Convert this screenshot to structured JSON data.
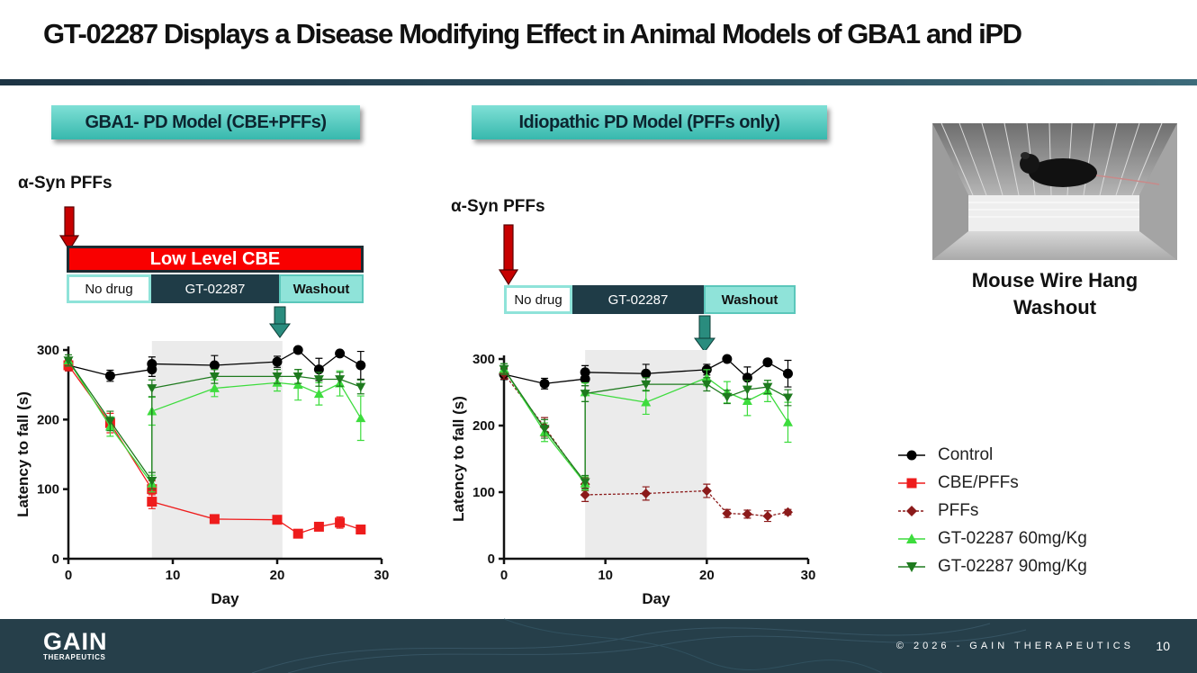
{
  "header": {
    "title": "GT-02287 Displays a Disease Modifying Effect in Animal Models of GBA1 and iPD"
  },
  "panels": {
    "left": {
      "model_label": "GBA1- PD Model (CBE+PFFs)",
      "syn_label": "α-Syn PFFs",
      "cbe_label": "Low Level CBE",
      "timeline": {
        "no_drug": "No drug",
        "drug": "GT-02287",
        "washout": "Washout"
      }
    },
    "right": {
      "model_label": "Idiopathic PD Model (PFFs only)",
      "syn_label": "α-Syn PFFs",
      "timeline": {
        "no_drug": "No drug",
        "drug": "GT-02287",
        "washout": "Washout"
      }
    }
  },
  "photo": {
    "caption_line1": "Mouse Wire Hang",
    "caption_line2": "Washout"
  },
  "legend": {
    "items": [
      {
        "label": "Control",
        "color": "#000000",
        "marker": "circle"
      },
      {
        "label": "CBE/PFFs",
        "color": "#ee1c1c",
        "marker": "square"
      },
      {
        "label": "PFFs",
        "color": "#8b1a1a",
        "marker": "diamond"
      },
      {
        "label": "GT-02287 60mg/Kg",
        "color": "#3ddc3d",
        "marker": "triangle-up"
      },
      {
        "label": "GT-02287 90mg/Kg",
        "color": "#1e7a1e",
        "marker": "triangle-down"
      }
    ]
  },
  "footer": {
    "logo_main": "GAIN",
    "logo_sub": "THERAPEUTICS",
    "copyright": "© 2026 - GAIN THERAPEUTICS",
    "page_number": "10"
  },
  "chart_data": [
    {
      "type": "line",
      "title": "GBA1- PD Model (CBE+PFFs)",
      "xlabel": "Day",
      "ylabel": "Latency to fall (s)",
      "xlim": [
        0,
        30
      ],
      "ylim": [
        0,
        300
      ],
      "xticks": [
        0,
        10,
        20,
        30
      ],
      "yticks": [
        0,
        100,
        200,
        300
      ],
      "shaded_region": [
        8,
        20.5
      ],
      "series": [
        {
          "name": "Control",
          "color": "#000000",
          "marker": "circle",
          "dashed": false,
          "x": [
            0,
            4,
            8,
            8,
            14,
            20,
            22,
            24,
            26,
            28
          ],
          "y": [
            278,
            263,
            272,
            280,
            278,
            283,
            300,
            272,
            295,
            278
          ],
          "err": [
            8,
            8,
            10,
            10,
            14,
            8,
            0,
            16,
            0,
            20
          ]
        },
        {
          "name": "CBE/PFFs",
          "color": "#ee1c1c",
          "marker": "square",
          "dashed": false,
          "x": [
            0,
            4,
            8,
            8,
            14,
            20,
            22,
            24,
            26,
            28
          ],
          "y": [
            278,
            195,
            100,
            82,
            57,
            56,
            36,
            46,
            52,
            42
          ],
          "err": [
            8,
            14,
            12,
            10,
            6,
            4,
            4,
            4,
            8,
            4
          ]
        },
        {
          "name": "GT-02287 60mg/Kg",
          "color": "#3ddc3d",
          "marker": "triangle-up",
          "dashed": false,
          "x": [
            0,
            4,
            8,
            8,
            14,
            20,
            22,
            24,
            26,
            28
          ],
          "y": [
            285,
            190,
            108,
            212,
            245,
            253,
            250,
            237,
            252,
            202
          ],
          "err": [
            8,
            14,
            12,
            20,
            12,
            12,
            22,
            16,
            18,
            32
          ]
        },
        {
          "name": "GT-02287 90mg/Kg",
          "color": "#1e7a1e",
          "marker": "triangle-down",
          "dashed": false,
          "x": [
            0,
            4,
            8,
            8,
            14,
            20,
            22,
            24,
            26,
            28
          ],
          "y": [
            285,
            198,
            112,
            245,
            262,
            262,
            262,
            258,
            258,
            247
          ],
          "err": [
            8,
            14,
            12,
            12,
            10,
            10,
            10,
            10,
            10,
            10
          ]
        }
      ]
    },
    {
      "type": "line",
      "title": "Idiopathic PD Model (PFFs only)",
      "xlabel": "Day",
      "ylabel": "Latency to fall (s)",
      "xlim": [
        0,
        30
      ],
      "ylim": [
        0,
        300
      ],
      "xticks": [
        0,
        10,
        20,
        30
      ],
      "yticks": [
        0,
        100,
        200,
        300
      ],
      "shaded_region": [
        8,
        20
      ],
      "series": [
        {
          "name": "Control",
          "color": "#000000",
          "marker": "circle",
          "dashed": false,
          "x": [
            0,
            4,
            8,
            8,
            14,
            20,
            22,
            24,
            26,
            28
          ],
          "y": [
            277,
            263,
            270,
            280,
            278,
            284,
            300,
            272,
            295,
            278
          ],
          "err": [
            8,
            8,
            10,
            10,
            14,
            8,
            0,
            16,
            0,
            20
          ]
        },
        {
          "name": "PFFs",
          "color": "#8b1a1a",
          "marker": "diamond",
          "dashed": true,
          "x": [
            0,
            4,
            8,
            8,
            14,
            20,
            22,
            24,
            26,
            28
          ],
          "y": [
            278,
            198,
            112,
            96,
            98,
            102,
            68,
            67,
            64,
            70
          ],
          "err": [
            8,
            14,
            10,
            10,
            10,
            10,
            6,
            6,
            8,
            4
          ]
        },
        {
          "name": "GT-02287 60mg/Kg",
          "color": "#3ddc3d",
          "marker": "triangle-up",
          "dashed": false,
          "x": [
            0,
            4,
            8,
            8,
            14,
            20,
            22,
            24,
            26,
            28
          ],
          "y": [
            285,
            190,
            113,
            250,
            235,
            272,
            250,
            237,
            252,
            205
          ],
          "err": [
            8,
            14,
            10,
            14,
            18,
            12,
            16,
            22,
            16,
            30
          ]
        },
        {
          "name": "GT-02287 90mg/Kg",
          "color": "#1e7a1e",
          "marker": "triangle-down",
          "dashed": false,
          "x": [
            0,
            4,
            8,
            8,
            14,
            20,
            22,
            24,
            26,
            28
          ],
          "y": [
            285,
            195,
            115,
            248,
            262,
            262,
            243,
            254,
            258,
            242
          ],
          "err": [
            8,
            14,
            10,
            12,
            10,
            10,
            10,
            14,
            10,
            12
          ]
        }
      ]
    }
  ]
}
